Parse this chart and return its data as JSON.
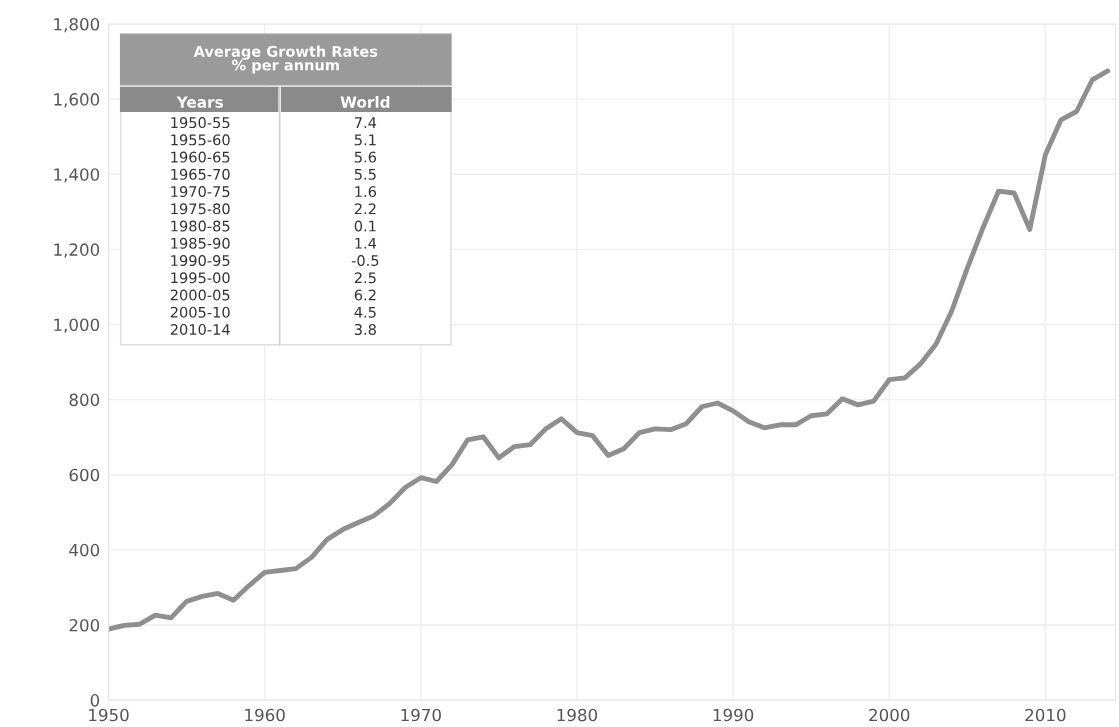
{
  "chart_data": {
    "type": "line",
    "x": [
      1950,
      1951,
      1952,
      1953,
      1954,
      1955,
      1956,
      1957,
      1958,
      1959,
      1960,
      1961,
      1962,
      1963,
      1964,
      1965,
      1966,
      1967,
      1968,
      1969,
      1970,
      1971,
      1972,
      1973,
      1974,
      1975,
      1976,
      1977,
      1978,
      1979,
      1980,
      1981,
      1982,
      1983,
      1984,
      1985,
      1986,
      1987,
      1988,
      1989,
      1990,
      1991,
      1992,
      1993,
      1994,
      1995,
      1996,
      1997,
      1998,
      1999,
      2000,
      2001,
      2002,
      2003,
      2004,
      2005,
      2006,
      2007,
      2008,
      2009,
      2010,
      2011,
      2012,
      2013,
      2014
    ],
    "series": [
      {
        "color": "#8f8f8f",
        "values": [
          189,
          199,
          202,
          226,
          219,
          263,
          276,
          284,
          266,
          305,
          340,
          345,
          350,
          380,
          428,
          454,
          473,
          491,
          523,
          566,
          592,
          582,
          627,
          693,
          701,
          645,
          675,
          680,
          722,
          749,
          712,
          704,
          651,
          669,
          712,
          722,
          720,
          736,
          781,
          791,
          770,
          741,
          725,
          733,
          733,
          757,
          762,
          802,
          786,
          796,
          853,
          858,
          895,
          948,
          1036,
          1150,
          1257,
          1355,
          1350,
          1253,
          1452,
          1545,
          1567,
          1651,
          1675
        ]
      }
    ],
    "xlim": [
      1950,
      2014.5
    ],
    "ylim": [
      0,
      1800
    ],
    "xticks": [
      1950,
      1960,
      1970,
      1980,
      1990,
      2000,
      2010
    ],
    "yticks": [
      0,
      200,
      400,
      600,
      800,
      {
        "value": 1000,
        "label": "1,000"
      },
      {
        "value": 1200,
        "label": "1,200"
      },
      {
        "value": 1400,
        "label": "1,400"
      },
      {
        "value": 1600,
        "label": "1,600"
      },
      {
        "value": 1800,
        "label": "1,800"
      }
    ],
    "grid": true,
    "marker": "none",
    "line_style": "solid",
    "annotations": [
      "Average Growth Rates\n% per annum",
      "Years",
      "World",
      "1950-55",
      "7.4",
      "1955-60",
      "5.1",
      "1960-65",
      "5.6",
      "1965-70",
      "5.5",
      "1970-75",
      "1.6",
      "1975-80",
      "2.2",
      "1980-85",
      "0.1",
      "1985-90",
      "1.4",
      "1990-95",
      "-0.5",
      "1995-00",
      "2.5",
      "2000-05",
      "6.2",
      "2005-10",
      "4.5",
      "2010-14",
      "3.8"
    ]
  }
}
